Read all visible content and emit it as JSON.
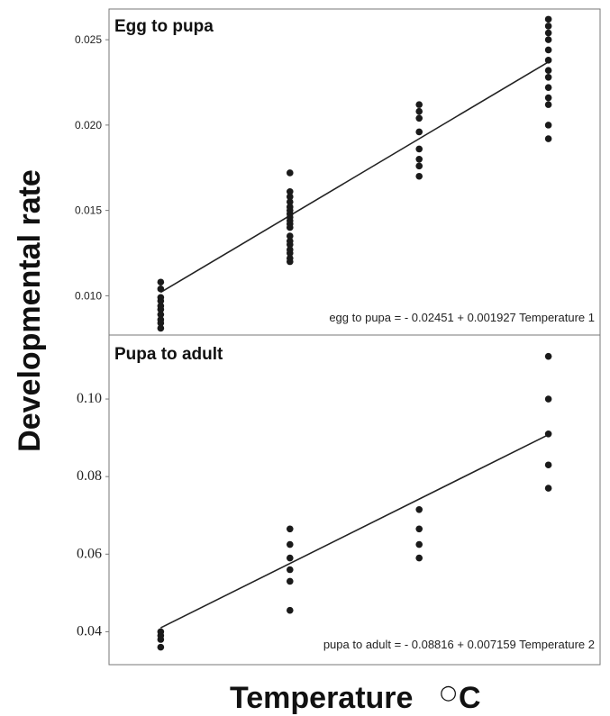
{
  "figure": {
    "ylabel": "Developmental rate",
    "xlabel_text": "Temperature ",
    "xlabel_degree": "○",
    "xlabel_unit": "C"
  },
  "chart_data": [
    {
      "type": "scatter",
      "title": "Egg to pupa",
      "xlabel": "Temperature °C",
      "ylabel": "Developmental rate",
      "ylim": [
        0.0077,
        0.0268
      ],
      "xlim": [
        1.6,
        5.4
      ],
      "yticks": [
        "0.010",
        "0.015",
        "0.020",
        "0.025"
      ],
      "ytick_values": [
        0.01,
        0.015,
        0.02,
        0.025
      ],
      "grid": false,
      "points": {
        "x": [
          2,
          2,
          2,
          2,
          2,
          2,
          2,
          2,
          2,
          2,
          3,
          3,
          3,
          3,
          3,
          3,
          3,
          3,
          3,
          3,
          3,
          3,
          3,
          3,
          3,
          3,
          3,
          3,
          4,
          4,
          4,
          4,
          4,
          4,
          4,
          4,
          5,
          5,
          5,
          5,
          5,
          5,
          5,
          5,
          5,
          5,
          5,
          5,
          5
        ],
        "y": [
          0.0081,
          0.0084,
          0.0086,
          0.0089,
          0.0092,
          0.0094,
          0.0097,
          0.0099,
          0.0104,
          0.0108,
          0.012,
          0.0122,
          0.0125,
          0.0127,
          0.013,
          0.0132,
          0.0135,
          0.014,
          0.0142,
          0.0144,
          0.0146,
          0.0148,
          0.015,
          0.0152,
          0.0155,
          0.0158,
          0.0161,
          0.0172,
          0.017,
          0.0176,
          0.018,
          0.0186,
          0.0196,
          0.0204,
          0.0208,
          0.0212,
          0.0192,
          0.02,
          0.0212,
          0.0216,
          0.0222,
          0.0228,
          0.0232,
          0.0238,
          0.0244,
          0.025,
          0.0254,
          0.0258,
          0.0262
        ]
      },
      "fit": {
        "x": [
          2,
          5
        ],
        "y": [
          0.0102,
          0.0237
        ]
      },
      "equation": "egg to pupa = - 0.02451 + 0.001927 Temperature 1"
    },
    {
      "type": "scatter",
      "title": "Pupa to adult",
      "xlabel": "Temperature °C",
      "ylabel": "Developmental rate",
      "ylim": [
        0.0315,
        0.1165
      ],
      "xlim": [
        1.6,
        5.4
      ],
      "yticks": [
        "0.04",
        "0.06",
        "0.08",
        "0.10"
      ],
      "ytick_values": [
        0.04,
        0.06,
        0.08,
        0.1
      ],
      "grid": false,
      "points": {
        "x": [
          2,
          2,
          2,
          2,
          3,
          3,
          3,
          3,
          3,
          3,
          4,
          4,
          4,
          4,
          5,
          5,
          5,
          5,
          5
        ],
        "y": [
          0.036,
          0.038,
          0.039,
          0.04,
          0.0455,
          0.053,
          0.056,
          0.059,
          0.0625,
          0.0665,
          0.059,
          0.0625,
          0.0665,
          0.0715,
          0.077,
          0.083,
          0.091,
          0.1,
          0.111
        ]
      },
      "fit": {
        "x": [
          2,
          5
        ],
        "y": [
          0.041,
          0.0908
        ]
      },
      "equation": "pupa to adult = - 0.08816 + 0.007159 Temperature 2"
    }
  ]
}
